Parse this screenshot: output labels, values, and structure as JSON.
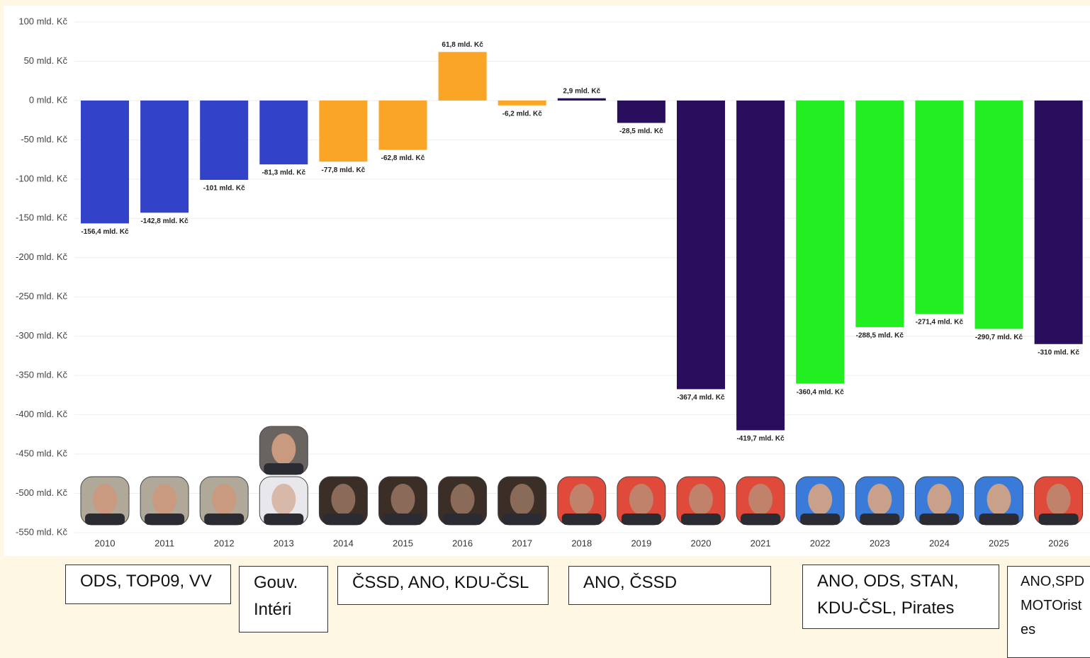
{
  "chart_data": {
    "type": "bar",
    "categories": [
      "2010",
      "2011",
      "2012",
      "2013",
      "2014",
      "2015",
      "2016",
      "2017",
      "2018",
      "2019",
      "2020",
      "2021",
      "2022",
      "2023",
      "2024",
      "2025",
      "2026"
    ],
    "values": [
      -156.4,
      -142.8,
      -101,
      -81.3,
      -77.8,
      -62.8,
      61.8,
      -6.2,
      2.9,
      -28.5,
      -367.4,
      -419.7,
      -360.4,
      -288.5,
      -271.4,
      -290.7,
      -310
    ],
    "value_labels": [
      "-156,4 mld. Kč",
      "-142,8 mld. Kč",
      "-101 mld. Kč",
      "-81,3 mld. Kč",
      "-77,8 mld. Kč",
      "-62,8 mld. Kč",
      "61,8 mld. Kč",
      "-6,2 mld. Kč",
      "2,9 mld. Kč",
      "-28,5 mld. Kč",
      "-367,4 mld. Kč",
      "-419,7 mld. Kč",
      "-360,4 mld. Kč",
      "-288,5 mld. Kč",
      "-271,4 mld. Kč",
      "-290,7 mld. Kč",
      "-310 mld. Kč"
    ],
    "colors": [
      "#3242c9",
      "#3242c9",
      "#3242c9",
      "#3242c9",
      "#fba526",
      "#fba526",
      "#fba526",
      "#fba526",
      "#2a0e5e",
      "#2a0e5e",
      "#2a0e5e",
      "#2a0e5e",
      "#22ee22",
      "#22ee22",
      "#22ee22",
      "#22ee22",
      "#2a0e5e"
    ],
    "ylim": [
      -550,
      100
    ],
    "yticks": [
      {
        "value": 100,
        "label": "100 mld. Kč"
      },
      {
        "value": 50,
        "label": "50 mld. Kč"
      },
      {
        "value": 0,
        "label": "0 mld. Kč"
      },
      {
        "value": -50,
        "label": "-50 mld. Kč"
      },
      {
        "value": -100,
        "label": "-100 mld. Kč"
      },
      {
        "value": -150,
        "label": "-150 mld. Kč"
      },
      {
        "value": -200,
        "label": "-200 mld. Kč"
      },
      {
        "value": -250,
        "label": "-250 mld. Kč"
      },
      {
        "value": -300,
        "label": "-300 mld. Kč"
      },
      {
        "value": -350,
        "label": "-350 mld. Kč"
      },
      {
        "value": -400,
        "label": "-400 mld. Kč"
      },
      {
        "value": -450,
        "label": "-450 mld. Kč"
      },
      {
        "value": -500,
        "label": "-500 mld. Kč"
      },
      {
        "value": -550,
        "label": "-550 mld. Kč"
      }
    ],
    "grid": true,
    "annotations": [
      "ODS, TOP09, VV",
      "Gouv. Intéri",
      "ČSSD, ANO, KDU-ČSL",
      "ANO, ČSSD",
      "ANO, ODS, STAN, KDU-ČSL, Pirates",
      "ANO,SPD MOTOrist es"
    ]
  }
}
